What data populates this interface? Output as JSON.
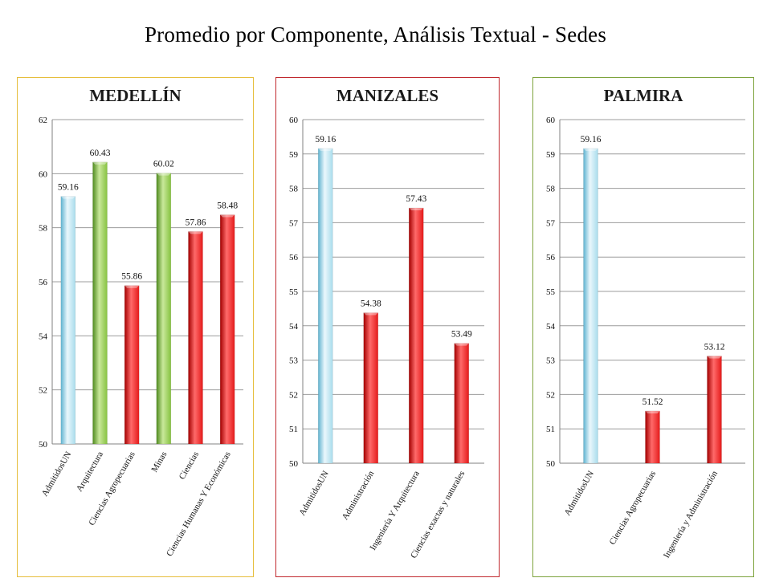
{
  "title": "Promedio por Componente, Análisis Textual -  Sedes",
  "colors": {
    "admitidos": "#9fd4e6",
    "green": "#7fb83a",
    "red": "#e11414"
  },
  "panels": [
    {
      "name": "MEDELLÍN",
      "border_color": "#e6be3c"
    },
    {
      "name": "MANIZALES",
      "border_color": "#c0282d"
    },
    {
      "name": "PALMIRA",
      "border_color": "#7da33c"
    }
  ],
  "chart_data": [
    {
      "type": "bar",
      "title": "MEDELLÍN",
      "categories": [
        "AdmitidosUN",
        "Arquitectura",
        "Ciencias Agropecuarias",
        "Minas",
        "Ciencias",
        "Ciencias Humanas Y Económicas"
      ],
      "values": [
        59.16,
        60.43,
        55.86,
        60.02,
        57.86,
        58.48
      ],
      "value_labels": [
        "59.16",
        "60.43",
        "55.86",
        "60.02",
        "57.86",
        "58.48"
      ],
      "bar_colors": [
        "admitidos",
        "green",
        "red",
        "green",
        "red",
        "red"
      ],
      "ylim": [
        50,
        62
      ],
      "yticks": [
        50,
        52,
        54,
        56,
        58,
        60,
        62
      ],
      "grid": true,
      "xlabel": "",
      "ylabel": ""
    },
    {
      "type": "bar",
      "title": "MANIZALES",
      "categories": [
        "AdmitidosUN",
        "Administración",
        "Ingeniería Y Arquitectura",
        "Ciencias exactas y naturales"
      ],
      "values": [
        59.16,
        54.38,
        57.43,
        53.49
      ],
      "value_labels": [
        "59.16",
        "54.38",
        "57.43",
        "53.49"
      ],
      "bar_colors": [
        "admitidos",
        "red",
        "red",
        "red"
      ],
      "ylim": [
        50,
        60
      ],
      "yticks": [
        50,
        51,
        52,
        53,
        54,
        55,
        56,
        57,
        58,
        59,
        60
      ],
      "grid": true,
      "xlabel": "",
      "ylabel": ""
    },
    {
      "type": "bar",
      "title": "PALMIRA",
      "categories": [
        "AdmitidosUN",
        "Ciencias Agropecuarias",
        "Ingeniería y Administración"
      ],
      "values": [
        59.16,
        51.52,
        53.12
      ],
      "value_labels": [
        "59.16",
        "51.52",
        "53.12"
      ],
      "bar_colors": [
        "admitidos",
        "red",
        "red"
      ],
      "ylim": [
        50,
        60
      ],
      "yticks": [
        50,
        51,
        52,
        53,
        54,
        55,
        56,
        57,
        58,
        59,
        60
      ],
      "grid": true,
      "xlabel": "",
      "ylabel": ""
    }
  ]
}
